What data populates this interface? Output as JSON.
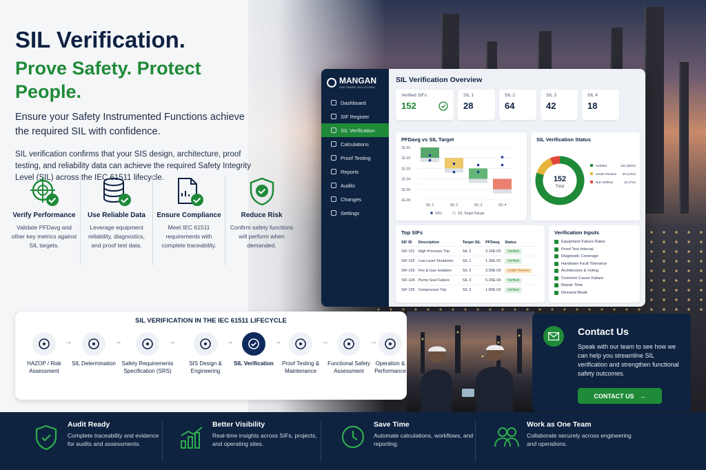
{
  "hero": {
    "title": "SIL Verification.",
    "tagline": "Prove Safety. Protect People.",
    "lead": "Ensure your Safety Instrumented Functions achieve the required SIL with confidence.",
    "description": "SIL verification confirms that your SIS design, architecture, proof testing, and reliability data can achieve the required Safety Integrity Level (SIL) across the IEC 61511 lifecycle."
  },
  "benefits": [
    {
      "icon": "target-check-icon",
      "title": "Verify Performance",
      "desc": "Validate PFDavg and other key metrics against SIL targets."
    },
    {
      "icon": "database-check-icon",
      "title": "Use Reliable Data",
      "desc": "Leverage equipment reliability, diagnostics, and proof test data."
    },
    {
      "icon": "document-check-icon",
      "title": "Ensure Compliance",
      "desc": "Meet IEC 61511 requirements with complete traceability."
    },
    {
      "icon": "shield-check-icon",
      "title": "Reduce Risk",
      "desc": "Confirm safety functions will perform when demanded."
    }
  ],
  "app": {
    "logo_name": "MANGAN",
    "logo_sub": "SOFTWARE SOLUTIONS",
    "nav": [
      "Dashboard",
      "SIF Register",
      "SIL Verification",
      "Calculations",
      "Proof Testing",
      "Reports",
      "Audits",
      "Changes",
      "Settings"
    ],
    "page_title": "SIL Verification Overview",
    "stats": [
      {
        "label": "Verified SIFs",
        "value": "152"
      },
      {
        "label": "SIL 1",
        "value": "28"
      },
      {
        "label": "SIL 2",
        "value": "64"
      },
      {
        "label": "SIL 3",
        "value": "42"
      },
      {
        "label": "SIL 4",
        "value": "18"
      }
    ],
    "pfd_title": "PFDavg vs SIL Target",
    "status_title": "SIL Verification Status",
    "top_sifs_title": "Top SIFs",
    "inputs_title": "Verification Inputs",
    "table_headers": [
      "SIF ID",
      "Description",
      "Target SIL",
      "PFDavg",
      "Status"
    ],
    "table_rows": [
      [
        "SIF-101",
        "High Pressure Trip",
        "SIL 2",
        "2.15E-03",
        "Verified"
      ],
      [
        "SIF-102",
        "Low Level Shutdown",
        "SIL 1",
        "1.30E-02",
        "Verified"
      ],
      [
        "SIF-103",
        "Fire & Gas Isolation",
        "SIL 2",
        "3.50E-03",
        "Under Review"
      ],
      [
        "SIF-104",
        "Pump Seal Failure",
        "SIL 3",
        "6.20E-04",
        "Verified"
      ],
      [
        "SIF-105",
        "Compressor Trip",
        "SIL 2",
        "1.80E-03",
        "Verified"
      ]
    ],
    "inputs": [
      "Equipment Failure Rates",
      "Proof Test Interval",
      "Diagnostic Coverage",
      "Hardware Fault Tolerance",
      "Architecture & Voting",
      "Common Cause Failure",
      "Repair Time",
      "Demand Mode"
    ]
  },
  "chart_data": [
    {
      "type": "scatter",
      "title": "PFDavg vs SIL Target",
      "categories": [
        "SIL 1",
        "SIL 2",
        "SIL 3",
        "SIL 4"
      ],
      "y_tick_labels": [
        "1E-01",
        "1E-02",
        "1E-03",
        "1E-04",
        "1E-05",
        "1E-06"
      ],
      "y_scale": "log",
      "series": [
        {
          "name": "SIFs",
          "points": [
            {
              "category": "SIL 1",
              "y": 0.018
            },
            {
              "category": "SIL 1",
              "y": 0.006
            },
            {
              "category": "SIL 2",
              "y": 0.0028
            },
            {
              "category": "SIL 2",
              "y": 0.00045
            },
            {
              "category": "SIL 3",
              "y": 0.0021
            },
            {
              "category": "SIL 3",
              "y": 0.00045
            },
            {
              "category": "SIL 4",
              "y": 0.012
            },
            {
              "category": "SIL 4",
              "y": 0.0021
            }
          ]
        },
        {
          "name": "SIL Target Range",
          "ranges": [
            [
              0.01,
              0.1
            ],
            [
              0.001,
              0.01
            ],
            [
              0.0001,
              0.001
            ],
            [
              1e-05,
              0.0001
            ]
          ]
        }
      ],
      "colors": [
        "#1f8a38",
        "#e8b53a",
        "#2f9e4a",
        "#e3553c"
      ],
      "legend_position": "bottom"
    },
    {
      "type": "pie",
      "title": "SIL Verification Status",
      "center_value": "152",
      "center_label": "Total",
      "slices": [
        {
          "label": "Verified",
          "value": 122,
          "percent": "122 (80%)",
          "color": "#1f8a38"
        },
        {
          "label": "Under Review",
          "value": 20,
          "percent": "20 (13%)",
          "color": "#e8b53a"
        },
        {
          "label": "Not Verified",
          "value": 10,
          "percent": "10 (7%)",
          "color": "#e0473a"
        }
      ],
      "legend_position": "right"
    }
  ],
  "lifecycle": {
    "title": "SIL VERIFICATION IN THE IEC 61511 LIFECYCLE",
    "steps": [
      "HAZOP / Risk Assessment",
      "SIL Determination",
      "Safety Requirements Specification (SRS)",
      "SIS Design & Engineering",
      "SIL Verification",
      "Proof Testing & Maintenance",
      "Functional Safety Assessment",
      "Operation & Performance"
    ]
  },
  "contact": {
    "title": "Contact Us",
    "desc": "Speak with our team to see how we can help you streamline SIL verification and strengthen functional safety outcomes.",
    "button": "CONTACT US"
  },
  "footer": [
    {
      "icon": "shield-check-icon",
      "title": "Audit Ready",
      "desc": "Complete traceability and evidence for audits and assessments."
    },
    {
      "icon": "bar-chart-icon",
      "title": "Better Visibility",
      "desc": "Real-time insights across SIFs, projects, and operating sites."
    },
    {
      "icon": "clock-icon",
      "title": "Save Time",
      "desc": "Automate calculations, workflows, and reporting."
    },
    {
      "icon": "team-icon",
      "title": "Work as One Team",
      "desc": "Collaborate securely across engineering and operations."
    }
  ]
}
